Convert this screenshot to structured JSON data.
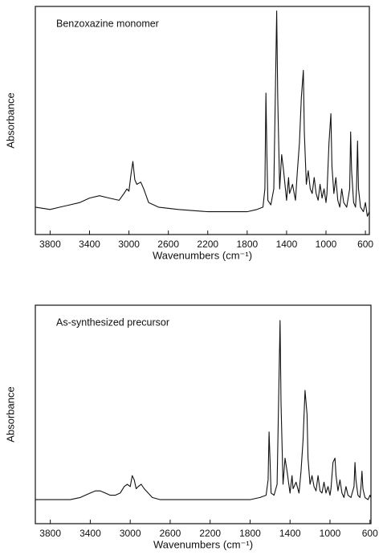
{
  "chart_data": [
    {
      "type": "line",
      "title": "Benzoxazine monomer",
      "x_label": "Wavenumbers (cm⁻¹)",
      "y_label": "Absorbance",
      "color": "#111111",
      "xlim": [
        3950,
        560
      ],
      "ylim": [
        0,
        100
      ],
      "xticks": [
        3800,
        3400,
        3000,
        2600,
        2200,
        1800,
        1400,
        1000,
        600
      ],
      "x": [
        3950,
        3800,
        3700,
        3600,
        3500,
        3400,
        3300,
        3200,
        3100,
        3050,
        3020,
        3000,
        2980,
        2960,
        2940,
        2920,
        2880,
        2850,
        2800,
        2700,
        2500,
        2200,
        2000,
        1800,
        1700,
        1640,
        1620,
        1610,
        1600,
        1590,
        1560,
        1530,
        1500,
        1490,
        1470,
        1450,
        1430,
        1400,
        1380,
        1370,
        1340,
        1310,
        1290,
        1270,
        1250,
        1230,
        1220,
        1200,
        1180,
        1160,
        1140,
        1120,
        1100,
        1080,
        1060,
        1040,
        1020,
        1000,
        990,
        970,
        950,
        940,
        920,
        900,
        880,
        860,
        840,
        820,
        790,
        760,
        750,
        740,
        720,
        700,
        690,
        680,
        670,
        650,
        620,
        600,
        580,
        560
      ],
      "values": [
        12,
        11,
        12,
        13,
        14,
        16,
        17,
        16,
        15,
        18,
        20,
        19,
        26,
        32,
        24,
        22,
        23,
        20,
        14,
        12,
        11,
        10,
        10,
        10,
        11,
        12,
        20,
        62,
        35,
        15,
        13,
        20,
        98,
        60,
        20,
        35,
        28,
        15,
        25,
        18,
        22,
        15,
        28,
        40,
        60,
        72,
        45,
        22,
        28,
        20,
        18,
        25,
        18,
        15,
        22,
        16,
        20,
        14,
        18,
        40,
        53,
        30,
        18,
        25,
        15,
        12,
        20,
        14,
        12,
        20,
        45,
        28,
        14,
        12,
        20,
        41,
        20,
        12,
        10,
        14,
        8,
        10
      ]
    },
    {
      "type": "line",
      "title": "As-synthesized precursor",
      "x_label": "Wavenumbers (cm⁻¹)",
      "y_label": "Absorbance",
      "color": "#111111",
      "xlim": [
        3950,
        590
      ],
      "ylim": [
        0,
        100
      ],
      "xticks": [
        3800,
        3400,
        3000,
        2600,
        2200,
        1800,
        1400,
        1000,
        600
      ],
      "x": [
        3950,
        3800,
        3700,
        3600,
        3500,
        3450,
        3400,
        3350,
        3300,
        3250,
        3200,
        3150,
        3100,
        3060,
        3030,
        3000,
        2980,
        2960,
        2940,
        2920,
        2890,
        2860,
        2820,
        2780,
        2700,
        2500,
        2200,
        2000,
        1800,
        1700,
        1640,
        1620,
        1610,
        1600,
        1590,
        1560,
        1530,
        1500,
        1490,
        1470,
        1450,
        1430,
        1400,
        1380,
        1370,
        1340,
        1310,
        1290,
        1270,
        1250,
        1230,
        1220,
        1200,
        1180,
        1160,
        1140,
        1120,
        1100,
        1080,
        1060,
        1040,
        1020,
        1000,
        990,
        970,
        950,
        940,
        920,
        900,
        880,
        860,
        840,
        820,
        790,
        760,
        750,
        740,
        720,
        700,
        690,
        680,
        670,
        650,
        620,
        600,
        590
      ],
      "values": [
        11,
        11,
        11,
        11,
        12,
        13,
        14,
        15,
        15,
        14,
        13,
        13,
        14,
        17,
        18,
        17,
        22,
        20,
        16,
        17,
        18,
        16,
        14,
        12,
        11,
        11,
        11,
        11,
        11,
        12,
        13,
        20,
        42,
        28,
        14,
        13,
        18,
        93,
        55,
        18,
        30,
        24,
        14,
        22,
        16,
        19,
        14,
        24,
        38,
        61,
        50,
        30,
        18,
        22,
        17,
        15,
        22,
        15,
        14,
        19,
        14,
        17,
        13,
        16,
        28,
        30,
        22,
        15,
        20,
        14,
        12,
        17,
        13,
        12,
        17,
        28,
        20,
        13,
        12,
        17,
        24,
        16,
        12,
        11,
        13,
        12
      ]
    }
  ]
}
